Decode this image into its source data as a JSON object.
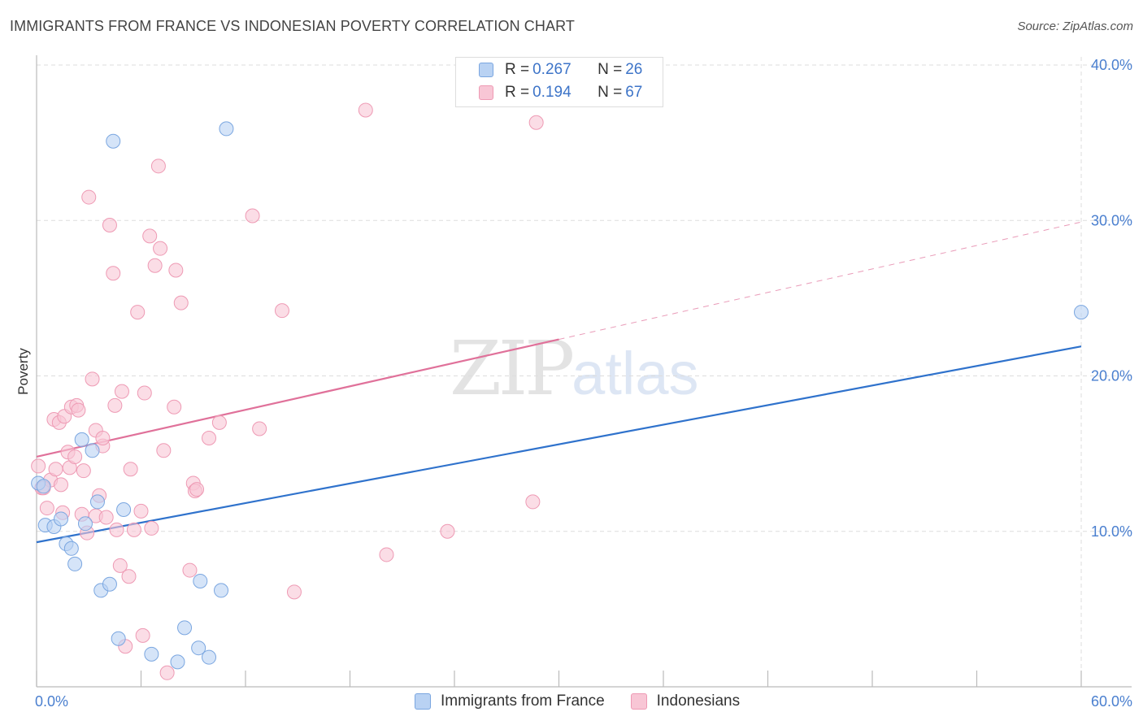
{
  "title": "IMMIGRANTS FROM FRANCE VS INDONESIAN POVERTY CORRELATION CHART",
  "source": "Source: ZipAtlas.com",
  "watermark": {
    "zip": "ZIP",
    "atlas": "atlas"
  },
  "legend": {
    "rows": [
      {
        "r_label": "R = ",
        "r_value": "0.267",
        "n_label": "N = ",
        "n_value": "26"
      },
      {
        "r_label": "R = ",
        "r_value": "0.194",
        "n_label": "N = ",
        "n_value": "67"
      }
    ]
  },
  "bottom_legend": [
    "Immigrants from France",
    "Indonesians"
  ],
  "colors": {
    "blue_fill": "#b9d2f3",
    "blue_stroke": "#7aa6e0",
    "blue_line": "#2f72cc",
    "pink_fill": "#f8c6d5",
    "pink_stroke": "#ee9ab4",
    "pink_line": "#e0719a",
    "grid": "#dddddd",
    "tick": "#4a7fcf"
  },
  "chart_data": {
    "type": "scatter",
    "title": "IMMIGRANTS FROM FRANCE VS INDONESIAN POVERTY CORRELATION CHART",
    "xlabel": "",
    "ylabel": "Poverty",
    "xlim": [
      0,
      60
    ],
    "ylim": [
      0,
      40
    ],
    "x_tick_labels": [
      "0.0%",
      "60.0%"
    ],
    "y_ticks": [
      10,
      20,
      30,
      40
    ],
    "y_tick_labels": [
      "10.0%",
      "20.0%",
      "30.0%",
      "40.0%"
    ],
    "series": [
      {
        "name": "Immigrants from France",
        "R": 0.267,
        "N": 26,
        "trend": {
          "x0": 0,
          "y0": 9.3,
          "x1": 60,
          "y1": 21.9,
          "dashed_from": null
        },
        "points": [
          [
            0.1,
            13.1
          ],
          [
            0.4,
            12.9
          ],
          [
            0.5,
            10.4
          ],
          [
            1.0,
            10.3
          ],
          [
            1.4,
            10.8
          ],
          [
            1.7,
            9.2
          ],
          [
            2.0,
            8.9
          ],
          [
            2.2,
            7.9
          ],
          [
            2.6,
            15.9
          ],
          [
            2.8,
            10.5
          ],
          [
            3.2,
            15.2
          ],
          [
            3.5,
            11.9
          ],
          [
            3.7,
            6.2
          ],
          [
            4.2,
            6.6
          ],
          [
            4.4,
            35.1
          ],
          [
            4.7,
            3.1
          ],
          [
            5.0,
            11.4
          ],
          [
            6.6,
            2.1
          ],
          [
            8.1,
            1.6
          ],
          [
            8.5,
            3.8
          ],
          [
            9.3,
            2.5
          ],
          [
            9.4,
            6.8
          ],
          [
            9.9,
            1.9
          ],
          [
            10.6,
            6.2
          ],
          [
            10.9,
            35.9
          ],
          [
            60.0,
            24.1
          ]
        ]
      },
      {
        "name": "Indonesians",
        "R": 0.194,
        "N": 67,
        "trend": {
          "x0": 0,
          "y0": 14.8,
          "x1": 60,
          "y1": 29.9,
          "dashed_from": 30
        },
        "points": [
          [
            0.1,
            14.2
          ],
          [
            0.3,
            12.8
          ],
          [
            0.6,
            11.5
          ],
          [
            0.8,
            13.3
          ],
          [
            1.0,
            17.2
          ],
          [
            1.1,
            14.0
          ],
          [
            1.3,
            17.0
          ],
          [
            1.4,
            13.0
          ],
          [
            1.5,
            11.2
          ],
          [
            1.6,
            17.4
          ],
          [
            1.8,
            15.1
          ],
          [
            1.9,
            14.1
          ],
          [
            2.0,
            18.0
          ],
          [
            2.2,
            14.8
          ],
          [
            2.3,
            18.1
          ],
          [
            2.4,
            17.8
          ],
          [
            2.6,
            11.1
          ],
          [
            2.7,
            13.9
          ],
          [
            2.9,
            9.9
          ],
          [
            3.0,
            31.5
          ],
          [
            3.2,
            19.8
          ],
          [
            3.4,
            11.0
          ],
          [
            3.4,
            16.5
          ],
          [
            3.6,
            12.3
          ],
          [
            3.8,
            15.5
          ],
          [
            3.8,
            16.0
          ],
          [
            4.0,
            10.9
          ],
          [
            4.2,
            29.7
          ],
          [
            4.4,
            26.6
          ],
          [
            4.5,
            18.1
          ],
          [
            4.6,
            10.1
          ],
          [
            4.8,
            7.8
          ],
          [
            4.9,
            19.0
          ],
          [
            5.1,
            2.6
          ],
          [
            5.3,
            7.1
          ],
          [
            5.4,
            14.0
          ],
          [
            5.6,
            10.1
          ],
          [
            5.8,
            24.1
          ],
          [
            6.0,
            11.3
          ],
          [
            6.1,
            3.3
          ],
          [
            6.2,
            18.9
          ],
          [
            6.5,
            29.0
          ],
          [
            6.6,
            10.2
          ],
          [
            6.8,
            27.1
          ],
          [
            7.0,
            33.5
          ],
          [
            7.1,
            28.2
          ],
          [
            7.3,
            15.2
          ],
          [
            7.5,
            0.9
          ],
          [
            7.9,
            18.0
          ],
          [
            8.0,
            26.8
          ],
          [
            8.3,
            24.7
          ],
          [
            8.8,
            7.5
          ],
          [
            9.0,
            13.1
          ],
          [
            9.1,
            12.6
          ],
          [
            9.2,
            12.7
          ],
          [
            9.9,
            16.0
          ],
          [
            10.5,
            17.0
          ],
          [
            12.4,
            30.3
          ],
          [
            12.8,
            16.6
          ],
          [
            14.1,
            24.2
          ],
          [
            14.8,
            6.1
          ],
          [
            18.9,
            37.1
          ],
          [
            20.1,
            8.5
          ],
          [
            23.6,
            10.0
          ],
          [
            28.5,
            11.9
          ],
          [
            28.7,
            36.3
          ],
          [
            0.4,
            12.8
          ]
        ]
      }
    ]
  }
}
